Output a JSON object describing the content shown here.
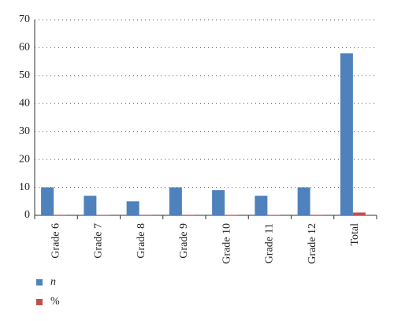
{
  "chart_data": {
    "type": "bar",
    "categories": [
      "Grade 6",
      "Grade 7",
      "Grade 8",
      "Grade 9",
      "Grade 10",
      "Grade 11",
      "Grade 12",
      "Total"
    ],
    "series": [
      {
        "name": "n",
        "color": "#4f81bd",
        "values": [
          10,
          7,
          5,
          10,
          9,
          7,
          10,
          58
        ]
      },
      {
        "name": "%",
        "color": "#c0504d",
        "values": [
          0.17,
          0.12,
          0.09,
          0.17,
          0.16,
          0.12,
          0.17,
          1
        ]
      }
    ],
    "ylim": [
      0,
      70
    ],
    "yticks": [
      0,
      10,
      20,
      30,
      40,
      50,
      60,
      70
    ],
    "grid": true
  }
}
